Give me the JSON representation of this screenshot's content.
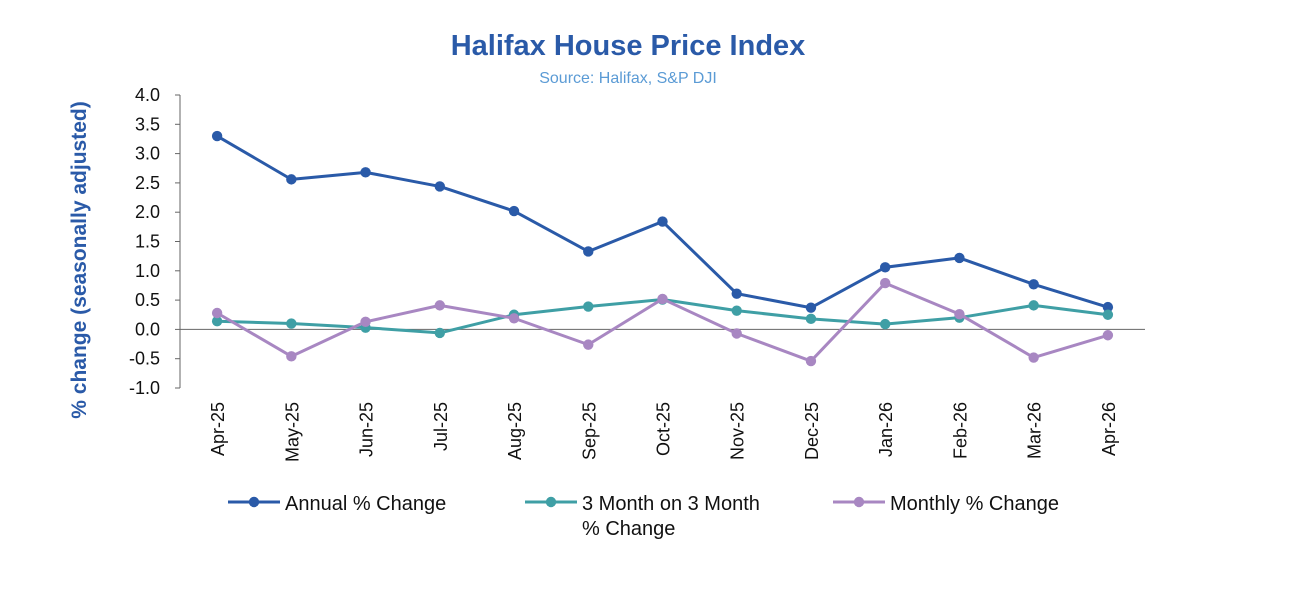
{
  "chart_data": {
    "type": "line",
    "title": "Halifax House Price Index",
    "subtitle": "Source: Halifax, S&P DJI",
    "ylabel": "% change (seasonally adjusted)",
    "xlabel": "",
    "ylim": [
      -1.0,
      4.0
    ],
    "yticks": [
      "4.0",
      "3.5",
      "3.0",
      "2.5",
      "2.0",
      "1.5",
      "1.0",
      "0.5",
      "0.0",
      "-0.5",
      "-1.0"
    ],
    "categories": [
      "Apr-25",
      "May-25",
      "Jun-25",
      "Jul-25",
      "Aug-25",
      "Sep-25",
      "Oct-25",
      "Nov-25",
      "Dec-25",
      "Jan-26",
      "Feb-26",
      "Mar-26",
      "Apr-26"
    ],
    "grid": false,
    "legend_position": "bottom",
    "series": [
      {
        "name": "Annual % Change",
        "color": "#2a5aa8",
        "values": [
          3.3,
          2.56,
          2.68,
          2.44,
          2.02,
          1.33,
          1.84,
          0.61,
          0.37,
          1.06,
          1.22,
          0.77,
          0.38
        ]
      },
      {
        "name": "3 Month on 3 Month % Change",
        "legend_lines": [
          "3 Month on 3 Month",
          "% Change"
        ],
        "color": "#3f9fa5",
        "values": [
          0.14,
          0.1,
          0.03,
          -0.06,
          0.25,
          0.39,
          0.51,
          0.32,
          0.18,
          0.09,
          0.2,
          0.41,
          0.25
        ]
      },
      {
        "name": "Monthly % Change",
        "color": "#a887c2",
        "values": [
          0.28,
          -0.46,
          0.13,
          0.41,
          0.19,
          -0.26,
          0.52,
          -0.07,
          -0.54,
          0.79,
          0.26,
          -0.48,
          -0.1
        ]
      }
    ]
  }
}
